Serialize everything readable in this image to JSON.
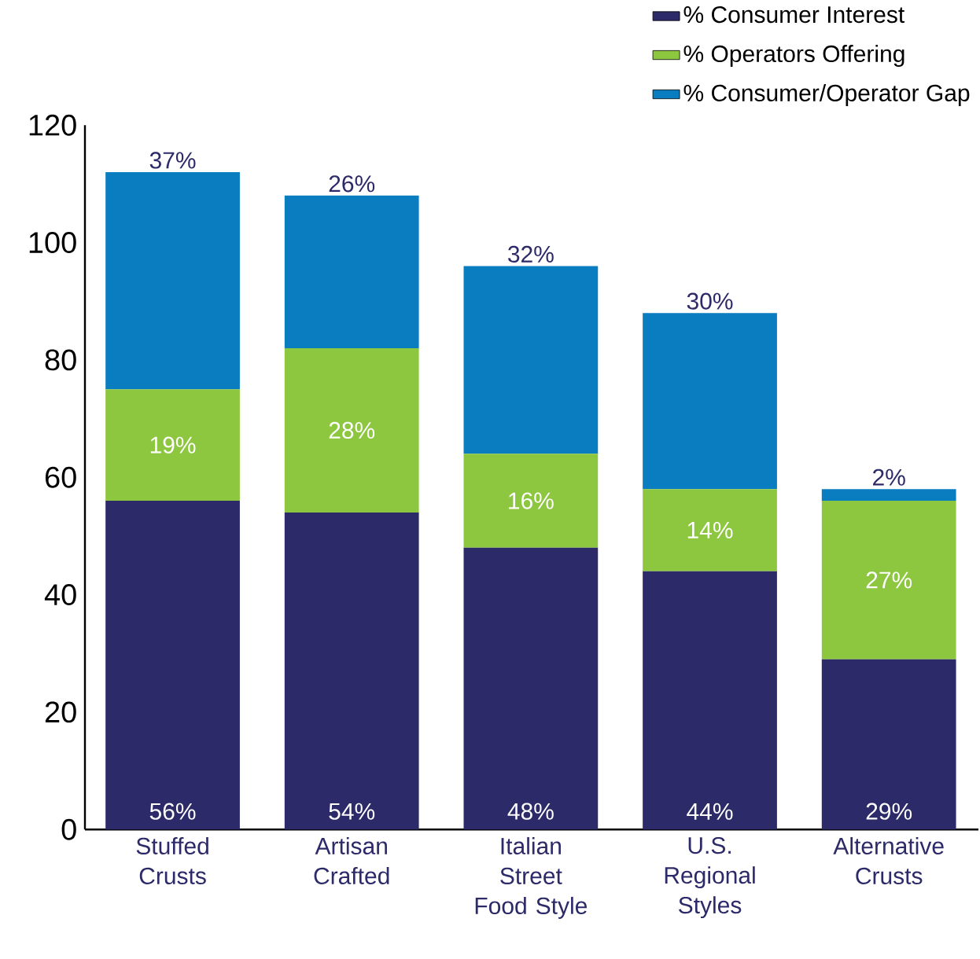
{
  "chart_data": {
    "type": "bar",
    "stacked": true,
    "categories": [
      "Stuffed Crusts",
      "Artisan Crafted",
      "Italian Street Food Style",
      "U.S. Regional Styles",
      "Alternative Crusts"
    ],
    "series": [
      {
        "name": "% Consumer Interest",
        "color": "#2c2a68",
        "values": [
          56,
          54,
          48,
          44,
          29
        ],
        "value_labels": [
          "56%",
          "54%",
          "48%",
          "44%",
          "29%"
        ]
      },
      {
        "name": "% Operators Offering",
        "color": "#8dc63f",
        "values": [
          19,
          28,
          16,
          14,
          27
        ],
        "value_labels": [
          "19%",
          "28%",
          "16%",
          "14%",
          "27%"
        ]
      },
      {
        "name": "% Consumer/Operator Gap",
        "color": "#0a7dc0",
        "values": [
          37,
          26,
          32,
          30,
          2
        ],
        "value_labels": [
          "37%",
          "26%",
          "32%",
          "30%",
          "2%"
        ]
      }
    ],
    "ylim": [
      0,
      120
    ],
    "yticks": [
      0,
      20,
      40,
      60,
      80,
      100,
      120
    ],
    "legend": "top right"
  }
}
